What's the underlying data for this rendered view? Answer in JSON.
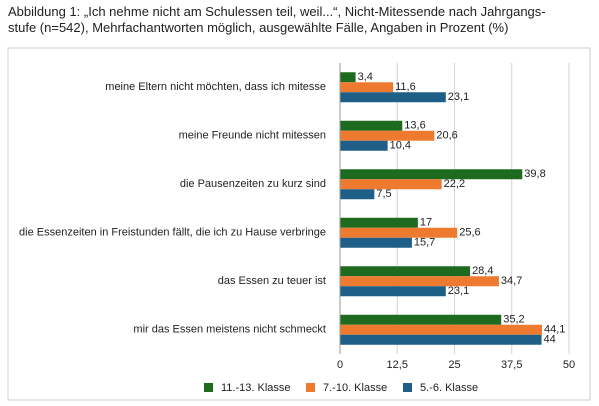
{
  "chart_data": {
    "type": "hbar",
    "title": [
      "Abbildung 1: „Ich nehme nicht am Schulessen teil, weil...“, Nicht-Mitessende nach Jahrgangs-",
      "stufe (n=542), Mehrfachantworten möglich, ausgewählte Fälle, Angaben in Prozent (%)"
    ],
    "categories": [
      "meine Eltern nicht möchten, dass ich mitesse",
      "meine Freunde nicht mitessen",
      "die Pausenzeiten zu kurz sind",
      "die Essenzeiten in Freistunden fällt, die ich zu Hause verbringe",
      "das Essen zu teuer ist",
      "mir das Essen meistens nicht schmeckt"
    ],
    "series": [
      {
        "name": "11.-13. Klasse",
        "color": "#1e6a1e",
        "values": [
          3.4,
          13.6,
          39.8,
          17,
          28.4,
          35.2
        ],
        "value_labels": [
          "3,4",
          "13,6",
          "39,8",
          "17",
          "28,4",
          "35,2"
        ]
      },
      {
        "name": "7.-10. Klasse",
        "color": "#ee7a30",
        "values": [
          11.6,
          20.6,
          22.2,
          25.6,
          34.7,
          44.1
        ],
        "value_labels": [
          "11,6",
          "20,6",
          "22,2",
          "25,6",
          "34,7",
          "44,1"
        ]
      },
      {
        "name": "5.-6. Klasse",
        "color": "#1f5e87",
        "values": [
          23.1,
          10.4,
          7.5,
          15.7,
          23.1,
          44
        ],
        "value_labels": [
          "23,1",
          "10,4",
          "7,5",
          "15,7",
          "23,1",
          "44"
        ]
      }
    ],
    "xlim": [
      0,
      50
    ],
    "xticks": [
      0,
      {
        "value": 12.5,
        "label": "12,5"
      },
      25,
      {
        "value": 37.5,
        "label": "37,5"
      },
      50
    ],
    "grid": true,
    "legend": "bottom"
  }
}
